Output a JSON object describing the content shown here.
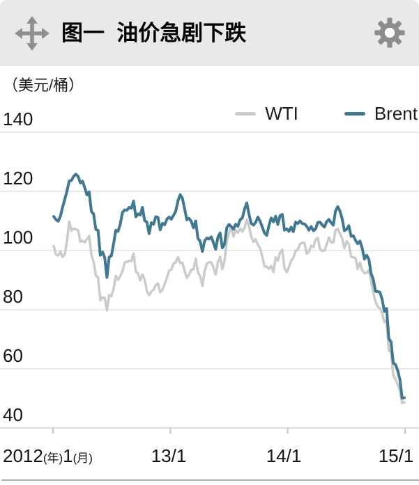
{
  "header": {
    "title": "图一  油价急剧下跌"
  },
  "chart_data": {
    "type": "line",
    "title": "图一 油价急剧下跌",
    "unit_label": "（美元/桶）",
    "frequency": "weekly",
    "x_range": [
      "2012-01",
      "2015-01"
    ],
    "ylim": [
      40,
      140
    ],
    "yticks": [
      140,
      120,
      100,
      80,
      60,
      40
    ],
    "grid": "horizontal-only",
    "legend_position": "top-right",
    "xaxis": {
      "first_label_parts": [
        "2012",
        "(年)",
        "1",
        "(月)"
      ],
      "other_labels": [
        "13/1",
        "14/1",
        "15/1"
      ]
    },
    "series": [
      {
        "name": "WTI",
        "color": "#cbcbcb",
        "values": [
          101.6,
          98.7,
          98.3,
          99.6,
          97.8,
          98.7,
          103.2,
          109.8,
          106.7,
          107.4,
          107.1,
          106.9,
          103.0,
          103.3,
          102.8,
          103.9,
          105.0,
          98.5,
          96.1,
          91.5,
          90.9,
          83.2,
          84.1,
          84.0,
          79.8,
          85.0,
          84.5,
          87.1,
          91.4,
          90.1,
          91.4,
          93.0,
          96.0,
          96.2,
          96.5,
          96.4,
          99.0,
          92.9,
          92.2,
          89.9,
          91.9,
          90.1,
          86.3,
          84.9,
          86.1,
          86.7,
          88.3,
          88.9,
          85.9,
          86.7,
          88.7,
          90.8,
          93.1,
          93.6,
          95.6,
          96.0,
          97.8,
          95.7,
          95.9,
          93.1,
          90.7,
          91.9,
          93.5,
          93.7,
          97.2,
          92.7,
          91.3,
          88.0,
          93.0,
          95.6,
          96.0,
          96.0,
          94.2,
          91.9,
          96.0,
          97.9,
          93.7,
          96.6,
          103.2,
          105.9,
          108.1,
          104.7,
          106.9,
          106.0,
          107.5,
          106.4,
          107.7,
          110.5,
          108.2,
          104.7,
          102.9,
          103.8,
          102.0,
          100.8,
          97.9,
          94.6,
          94.6,
          93.8,
          94.8,
          92.7,
          97.7,
          96.6,
          99.3,
          100.3,
          94.0,
          92.7,
          94.4,
          96.6,
          97.5,
          100.0,
          100.3,
          102.2,
          102.6,
          102.6,
          98.9,
          99.5,
          101.7,
          101.1,
          103.7,
          104.3,
          100.6,
          99.8,
          100.0,
          102.0,
          104.4,
          102.7,
          102.7,
          106.9,
          107.3,
          105.7,
          104.1,
          100.8,
          103.1,
          102.1,
          97.9,
          97.7,
          97.4,
          93.7,
          95.9,
          93.3,
          92.3,
          92.4,
          93.5,
          89.7,
          85.8,
          82.8,
          81.0,
          80.5,
          78.7,
          75.8,
          76.5,
          66.2,
          65.8,
          57.8,
          56.5,
          54.7,
          52.7,
          48.4,
          48.7
        ]
      },
      {
        "name": "Brent",
        "color": "#3f7890",
        "values": [
          111.5,
          110.5,
          109.9,
          111.5,
          114.6,
          117.3,
          120.1,
          123.5,
          123.7,
          125.1,
          125.8,
          125.1,
          122.9,
          123.4,
          121.2,
          118.8,
          119.8,
          113.2,
          112.3,
          107.1,
          106.8,
          98.4,
          99.5,
          97.6,
          90.9,
          97.8,
          98.2,
          102.4,
          106.8,
          106.5,
          108.9,
          112.9,
          113.7,
          113.6,
          114.6,
          114.3,
          116.7,
          111.4,
          112.4,
          112.0,
          114.6,
          110.1,
          109.6,
          105.7,
          109.4,
          108.9,
          111.4,
          111.2,
          107.0,
          109.2,
          108.7,
          110.6,
          111.3,
          110.6,
          111.9,
          113.3,
          116.8,
          118.9,
          117.7,
          114.1,
          110.4,
          110.9,
          109.8,
          107.7,
          110.0,
          104.1,
          103.1,
          99.7,
          103.2,
          104.2,
          103.9,
          104.6,
          102.6,
          100.4,
          104.6,
          105.9,
          100.9,
          102.2,
          107.7,
          108.8,
          108.1,
          107.2,
          108.9,
          108.2,
          110.4,
          111.0,
          114.0,
          116.1,
          112.2,
          109.2,
          108.6,
          109.5,
          111.3,
          109.9,
          107.9,
          105.9,
          105.1,
          108.5,
          111.0,
          109.7,
          111.6,
          108.8,
          111.8,
          112.2,
          106.9,
          107.3,
          106.5,
          107.9,
          106.4,
          109.6,
          109.1,
          110.0,
          109.1,
          109.0,
          108.2,
          106.9,
          108.1,
          106.7,
          107.3,
          109.5,
          109.6,
          108.6,
          107.9,
          109.8,
          110.5,
          109.4,
          108.6,
          113.4,
          114.8,
          113.3,
          110.6,
          106.7,
          107.2,
          108.4,
          104.8,
          105.0,
          103.4,
          102.3,
          103.2,
          100.8,
          97.1,
          98.4,
          97.0,
          92.3,
          90.2,
          86.2,
          86.1,
          85.9,
          83.4,
          79.4,
          80.4,
          70.2,
          69.1,
          61.9,
          61.4,
          59.5,
          56.4,
          50.1,
          50.2
        ]
      }
    ]
  }
}
